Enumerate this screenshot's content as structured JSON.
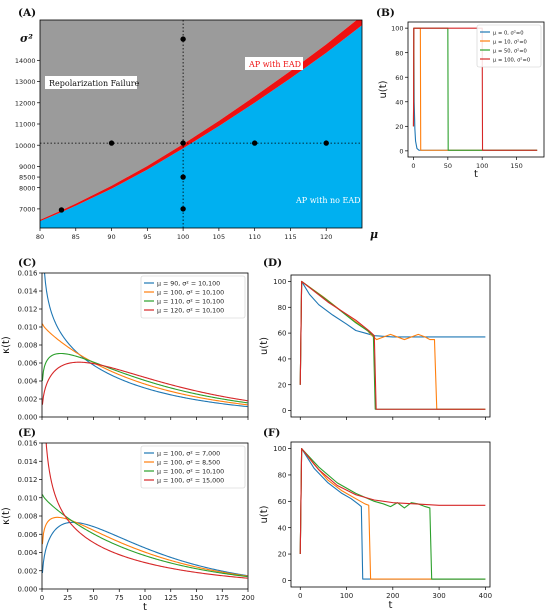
{
  "panel_labels": [
    "(A)",
    "(B)",
    "(C)",
    "(D)",
    "(E)",
    "(F)"
  ],
  "colors": {
    "blue": "#1f77b4",
    "orange": "#ff7f0e",
    "green": "#2ca02c",
    "red": "#d62728",
    "gray_region": "#9b9b9b",
    "cyan_region": "#00b0f0",
    "boundary": "#ee1111"
  },
  "chart_data": [
    {
      "panel": "(A)",
      "type": "scatter",
      "xlabel": "μ",
      "ylabel": "σ²",
      "xlim": [
        80,
        125
      ],
      "ylim": [
        6100,
        15900
      ],
      "xticks": [
        80,
        85,
        90,
        95,
        100,
        105,
        110,
        115,
        120
      ],
      "yticks": [
        7000,
        8000,
        8500,
        9000,
        10000,
        11000,
        12000,
        13000,
        14000
      ],
      "xtick_labels": [
        "80",
        "85",
        "90",
        "95",
        "100",
        "105",
        "110",
        "115",
        "120"
      ],
      "ytick_labels": [
        "7000",
        "8000",
        "8500",
        "9000",
        "10000",
        "11000",
        "12000",
        "13000",
        "14000"
      ],
      "y_label_ticks": [
        7000,
        8000,
        8500,
        9000,
        10000,
        11000,
        12000,
        13000,
        14000
      ],
      "regions": [
        {
          "label": "Repolarization Failure",
          "color": "#9b9b9b"
        },
        {
          "label": "AP with EAD",
          "color": "#ee1111"
        },
        {
          "label": "AP with no EAD",
          "color": "#00b0f0"
        }
      ],
      "boundary": {
        "x": [
          80,
          83,
          85,
          90,
          95,
          100,
          105,
          110,
          115,
          120,
          125
        ],
        "y_lower": [
          6420,
          6850,
          7150,
          7950,
          8850,
          9850,
          10900,
          12000,
          13150,
          14350,
          15650
        ],
        "y_upper": [
          6480,
          6930,
          7250,
          8090,
          9020,
          10050,
          11150,
          12300,
          13500,
          14750,
          16100
        ]
      },
      "points": [
        {
          "x": 83,
          "y": 6950
        },
        {
          "x": 90,
          "y": 10100
        },
        {
          "x": 100,
          "y": 10100
        },
        {
          "x": 110,
          "y": 10100
        },
        {
          "x": 120,
          "y": 10100
        },
        {
          "x": 100,
          "y": 7000
        },
        {
          "x": 100,
          "y": 8500
        },
        {
          "x": 100,
          "y": 15000
        }
      ],
      "reference_lines": {
        "x": 100,
        "y": 10100
      }
    },
    {
      "panel": "(B)",
      "type": "line",
      "xlabel": "t",
      "ylabel": "u(t)",
      "xlim": [
        -8,
        190
      ],
      "ylim": [
        -5,
        105
      ],
      "xticks": [
        0,
        50,
        100,
        150
      ],
      "yticks": [
        0,
        20,
        40,
        60,
        80,
        100
      ],
      "xtick_labels": [
        "0",
        "50",
        "100",
        "150"
      ],
      "ytick_labels": [
        "0",
        "20",
        "40",
        "60",
        "80",
        "100"
      ],
      "legend": [
        "μ = 0, σ²=0",
        "μ = 10, σ²=0",
        "μ = 50, σ²=0",
        "μ = 100, σ²=0"
      ],
      "legend_position": "top-right",
      "series": [
        {
          "name": "μ = 0, σ²=0",
          "color": "#1f77b4",
          "x": [
            0,
            0.5,
            1,
            2,
            3,
            5,
            8,
            180
          ],
          "y": [
            20,
            100,
            40,
            18,
            8,
            2,
            0.5,
            0.5
          ]
        },
        {
          "name": "μ = 10, σ²=0",
          "color": "#ff7f0e",
          "x": [
            0,
            0.5,
            10,
            10.5,
            180
          ],
          "y": [
            20,
            100,
            100,
            0.5,
            0.5
          ]
        },
        {
          "name": "μ = 50, σ²=0",
          "color": "#2ca02c",
          "x": [
            0,
            0.5,
            50,
            50.5,
            180
          ],
          "y": [
            20,
            100,
            100,
            0.5,
            0.5
          ]
        },
        {
          "name": "μ = 100, σ²=0",
          "color": "#d62728",
          "x": [
            0,
            0.5,
            100,
            100.5,
            180
          ],
          "y": [
            20,
            100,
            100,
            0.5,
            0.5
          ]
        }
      ]
    },
    {
      "panel": "(C)",
      "type": "line",
      "xlabel": "",
      "ylabel": "κ(t)",
      "xlim": [
        0,
        200
      ],
      "ylim": [
        0,
        0.016
      ],
      "xticks": [
        0,
        25,
        50,
        75,
        100,
        125,
        150,
        175,
        200
      ],
      "yticks": [
        0,
        0.002,
        0.004,
        0.006,
        0.008,
        0.01,
        0.012,
        0.014,
        0.016
      ],
      "xtick_labels": [],
      "ytick_labels": [
        "0.000",
        "0.002",
        "0.004",
        "0.006",
        "0.008",
        "0.010",
        "0.012",
        "0.014",
        "0.016"
      ],
      "legend": [
        "μ = 90, σ² = 10,100",
        "μ = 100, σ² = 10,100",
        "μ = 110, σ² = 10,100",
        "μ = 120, σ² = 10,100"
      ],
      "legend_position": "top-right",
      "series": [
        {
          "name": "μ = 90, σ² = 10,100",
          "color": "#1f77b4",
          "params": {
            "mu": 90,
            "var": 10100
          }
        },
        {
          "name": "μ = 100, σ² = 10,100",
          "color": "#ff7f0e",
          "params": {
            "mu": 100,
            "var": 10100
          }
        },
        {
          "name": "μ = 110, σ² = 10,100",
          "color": "#2ca02c",
          "params": {
            "mu": 110,
            "var": 10100
          }
        },
        {
          "name": "μ = 120, σ² = 10,100",
          "color": "#d62728",
          "params": {
            "mu": 120,
            "var": 10100
          }
        }
      ]
    },
    {
      "panel": "(D)",
      "type": "line",
      "xlabel": "",
      "ylabel": "u(t)",
      "xlim": [
        -20,
        410
      ],
      "ylim": [
        -5,
        105
      ],
      "xticks": [
        0,
        100,
        200,
        300,
        400
      ],
      "yticks": [
        0,
        20,
        40,
        60,
        80,
        100
      ],
      "xtick_labels": [],
      "ytick_labels": [
        "0",
        "20",
        "40",
        "60",
        "80",
        "100"
      ],
      "series": [
        {
          "name": "",
          "color": "#1f77b4",
          "x": [
            0,
            3,
            20,
            40,
            70,
            100,
            120,
            140,
            160,
            200,
            250,
            300,
            350,
            400
          ],
          "y": [
            20,
            100,
            90,
            82,
            74,
            67,
            62,
            60,
            58,
            57,
            57,
            57,
            57,
            57
          ]
        },
        {
          "name": "",
          "color": "#ff7f0e",
          "x": [
            0,
            3,
            50,
            100,
            130,
            145,
            155,
            165,
            180,
            195,
            210,
            225,
            240,
            255,
            270,
            280,
            290,
            295,
            300,
            310,
            400
          ],
          "y": [
            20,
            100,
            88,
            74,
            66,
            62,
            58,
            55,
            57,
            59,
            57,
            55,
            57,
            59,
            57,
            55,
            55,
            1,
            1,
            1,
            1
          ]
        },
        {
          "name": "",
          "color": "#2ca02c",
          "x": [
            0,
            3,
            60,
            120,
            145,
            158,
            162,
            400
          ],
          "y": [
            20,
            100,
            85,
            68,
            62,
            58,
            1,
            1
          ]
        },
        {
          "name": "",
          "color": "#d62728",
          "x": [
            0,
            3,
            60,
            120,
            148,
            160,
            164,
            400
          ],
          "y": [
            20,
            100,
            84,
            70,
            62,
            58,
            1,
            1
          ]
        }
      ]
    },
    {
      "panel": "(E)",
      "type": "line",
      "xlabel": "t",
      "ylabel": "κ(t)",
      "xlim": [
        0,
        200
      ],
      "ylim": [
        0,
        0.016
      ],
      "xticks": [
        0,
        25,
        50,
        75,
        100,
        125,
        150,
        175,
        200
      ],
      "yticks": [
        0,
        0.002,
        0.004,
        0.006,
        0.008,
        0.01,
        0.012,
        0.014,
        0.016
      ],
      "xtick_labels": [
        "0",
        "25",
        "50",
        "75",
        "100",
        "125",
        "150",
        "175",
        "200"
      ],
      "ytick_labels": [
        "0.000",
        "0.002",
        "0.004",
        "0.006",
        "0.008",
        "0.010",
        "0.012",
        "0.014",
        "0.016"
      ],
      "legend": [
        "μ = 100, σ² = 7,000",
        "μ = 100, σ² = 8,500",
        "μ = 100, σ² = 10,100",
        "μ = 100, σ² = 15,000"
      ],
      "legend_position": "top-right",
      "series": [
        {
          "name": "μ = 100, σ² = 7,000",
          "color": "#1f77b4",
          "params": {
            "mu": 100,
            "var": 7000
          }
        },
        {
          "name": "μ = 100, σ² = 8,500",
          "color": "#ff7f0e",
          "params": {
            "mu": 100,
            "var": 8500
          }
        },
        {
          "name": "μ = 100, σ² = 10,100",
          "color": "#2ca02c",
          "params": {
            "mu": 100,
            "var": 10100
          }
        },
        {
          "name": "μ = 100, σ² = 15,000",
          "color": "#d62728",
          "params": {
            "mu": 100,
            "var": 15000
          }
        }
      ]
    },
    {
      "panel": "(F)",
      "type": "line",
      "xlabel": "t",
      "ylabel": "u(t)",
      "xlim": [
        -20,
        410
      ],
      "ylim": [
        -5,
        105
      ],
      "xticks": [
        0,
        100,
        200,
        300,
        400
      ],
      "yticks": [
        0,
        20,
        40,
        60,
        80,
        100
      ],
      "xtick_labels": [
        "0",
        "100",
        "200",
        "300",
        "400"
      ],
      "ytick_labels": [
        "0",
        "20",
        "40",
        "60",
        "80",
        "100"
      ],
      "series": [
        {
          "name": "",
          "color": "#1f77b4",
          "x": [
            0,
            3,
            30,
            60,
            90,
            110,
            125,
            132,
            135,
            400
          ],
          "y": [
            20,
            100,
            85,
            74,
            66,
            62,
            58,
            56,
            1,
            1
          ]
        },
        {
          "name": "",
          "color": "#ff7f0e",
          "x": [
            0,
            3,
            30,
            60,
            90,
            120,
            140,
            148,
            152,
            400
          ],
          "y": [
            20,
            100,
            88,
            76,
            68,
            62,
            58,
            57,
            1,
            1
          ]
        },
        {
          "name": "",
          "color": "#2ca02c",
          "x": [
            0,
            3,
            40,
            80,
            120,
            160,
            180,
            195,
            210,
            225,
            240,
            255,
            270,
            280,
            284,
            400
          ],
          "y": [
            20,
            100,
            86,
            74,
            66,
            60,
            58,
            56,
            59,
            55,
            59,
            58,
            56,
            55,
            1,
            1
          ]
        },
        {
          "name": "",
          "color": "#d62728",
          "x": [
            0,
            3,
            40,
            80,
            120,
            160,
            200,
            250,
            300,
            350,
            400
          ],
          "y": [
            20,
            100,
            84,
            72,
            65,
            61,
            59,
            58,
            57,
            57,
            57
          ]
        }
      ]
    }
  ],
  "text": {
    "region_fail": "Repolarization Failure",
    "region_ead": "AP with EAD",
    "region_noead": "AP with no EAD"
  }
}
